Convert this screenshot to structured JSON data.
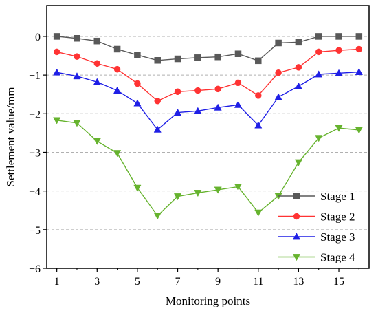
{
  "chart_data": {
    "type": "line",
    "title": "",
    "xlabel": "Monitoring points",
    "ylabel": "Settlement value/mm",
    "x": [
      1,
      2,
      3,
      4,
      5,
      6,
      7,
      8,
      9,
      10,
      11,
      12,
      13,
      14,
      15,
      16
    ],
    "xticks": [
      "1",
      "3",
      "5",
      "7",
      "9",
      "11",
      "13",
      "15"
    ],
    "xlim": [
      0.5,
      16.5
    ],
    "ylim": [
      -6,
      0.8
    ],
    "yticks": [
      "0",
      "−1",
      "−2",
      "−3",
      "−4",
      "−5",
      "−6"
    ],
    "grid": "horizontal dashed",
    "legend_position": "bottom-right",
    "series": [
      {
        "name": "Stage 1",
        "color": "#595959",
        "marker": "square",
        "values": [
          0.0,
          -0.05,
          -0.12,
          -0.33,
          -0.48,
          -0.62,
          -0.58,
          -0.55,
          -0.53,
          -0.45,
          -0.63,
          -0.17,
          -0.15,
          0.0,
          0.0,
          0.0
        ]
      },
      {
        "name": "Stage 2",
        "color": "#ff3333",
        "marker": "circle",
        "values": [
          -0.4,
          -0.52,
          -0.7,
          -0.85,
          -1.22,
          -1.67,
          -1.43,
          -1.4,
          -1.36,
          -1.2,
          -1.53,
          -0.94,
          -0.8,
          -0.4,
          -0.36,
          -0.33
        ]
      },
      {
        "name": "Stage 3",
        "color": "#1f1fe6",
        "marker": "triangle-up",
        "values": [
          -0.93,
          -1.03,
          -1.18,
          -1.4,
          -1.73,
          -2.41,
          -1.97,
          -1.93,
          -1.84,
          -1.77,
          -2.3,
          -1.57,
          -1.29,
          -0.98,
          -0.95,
          -0.92
        ]
      },
      {
        "name": "Stage 4",
        "color": "#66b32e",
        "marker": "triangle-down",
        "values": [
          -2.17,
          -2.24,
          -2.71,
          -3.02,
          -3.92,
          -4.64,
          -4.14,
          -4.05,
          -3.97,
          -3.89,
          -4.56,
          -4.13,
          -3.26,
          -2.63,
          -2.37,
          -2.42
        ]
      }
    ]
  }
}
